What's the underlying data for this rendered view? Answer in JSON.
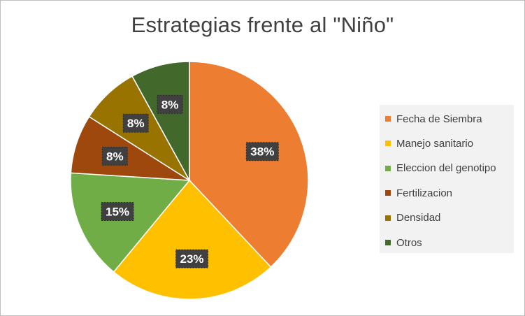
{
  "chart_data": {
    "type": "pie",
    "title": "Estrategias frente al \"Niño\"",
    "categories": [
      "Fecha de Siembra",
      "Manejo sanitario",
      "Eleccion del genotipo",
      "Fertilizacion",
      "Densidad",
      "Otros"
    ],
    "values": [
      38,
      23,
      15,
      8,
      8,
      8
    ],
    "labels": [
      "38%",
      "23%",
      "15%",
      "8%",
      "8%",
      "8%"
    ],
    "colors": [
      "#ED7D31",
      "#FFC000",
      "#70AD47",
      "#9E480E",
      "#997300",
      "#43682B"
    ],
    "legend_position": "right",
    "data_label_style": "dark boxes with white bold text"
  }
}
